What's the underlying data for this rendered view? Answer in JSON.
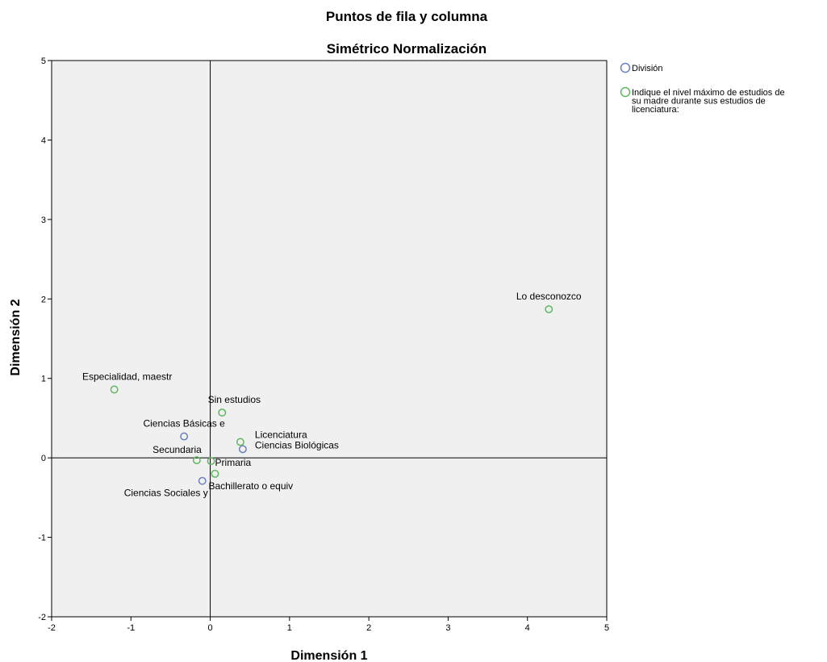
{
  "chart_data": {
    "type": "scatter",
    "title": "Puntos de fila y columna",
    "subtitle": "Simétrico Normalización",
    "xlabel": "Dimensión 1",
    "ylabel": "Dimensión 2",
    "xlim": [
      -2,
      5
    ],
    "ylim": [
      -2,
      5
    ],
    "xticks": [
      -2,
      -1,
      0,
      1,
      2,
      3,
      4,
      5
    ],
    "yticks": [
      -2,
      -1,
      0,
      1,
      2,
      3,
      4,
      5
    ],
    "reference_lines": {
      "x": 0,
      "y": 0
    },
    "grid": false,
    "legend_position": "right",
    "series": [
      {
        "name": "División",
        "color": "#6a7fbf",
        "points": [
          {
            "label": "Ciencias Básicas e",
            "x": -0.33,
            "y": 0.27
          },
          {
            "label": "Ciencias Sociales y",
            "x": -0.1,
            "y": -0.29
          },
          {
            "label": "Ciencias Biológicas",
            "x": 0.41,
            "y": 0.11
          }
        ]
      },
      {
        "name": "Indique el nivel máximo de estudios de su madre durante sus estudios de licenciatura:",
        "color": "#5fb65f",
        "points": [
          {
            "label": "Lo desconozco",
            "x": 4.27,
            "y": 1.87
          },
          {
            "label": "Especialidad, maestr",
            "x": -1.21,
            "y": 0.86
          },
          {
            "label": "Sin estudios",
            "x": 0.15,
            "y": 0.57
          },
          {
            "label": "Licenciatura",
            "x": 0.38,
            "y": 0.2
          },
          {
            "label": "Secundaria",
            "x": -0.17,
            "y": -0.03
          },
          {
            "label": "Primaria",
            "x": 0.01,
            "y": -0.04
          },
          {
            "label": "Bachillerato o equiv",
            "x": 0.06,
            "y": -0.2
          }
        ]
      }
    ]
  },
  "legend": {
    "items": [
      {
        "lines": [
          "División"
        ],
        "color": "#6a7fbf"
      },
      {
        "lines": [
          "Indique el nivel máximo de estudios de",
          "su madre durante sus estudios de",
          "licenciatura:"
        ],
        "color": "#5fb65f"
      }
    ]
  }
}
